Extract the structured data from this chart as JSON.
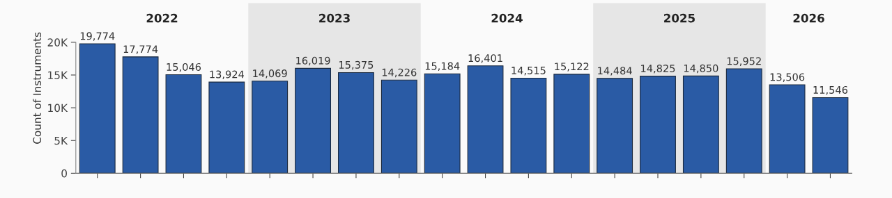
{
  "chart_data": {
    "type": "bar",
    "ylabel": "Count of Instruments",
    "categories": [
      null,
      null,
      null,
      null,
      null,
      null,
      null,
      null,
      null,
      null,
      null,
      null,
      null,
      null,
      null,
      null,
      null,
      null
    ],
    "values": [
      19774,
      17774,
      15046,
      13924,
      14069,
      16019,
      15375,
      14226,
      15184,
      16401,
      14515,
      15122,
      14484,
      14825,
      14850,
      15952,
      13506,
      11546
    ],
    "value_labels": [
      "19,774",
      "17,774",
      "15,046",
      "13,924",
      "14,069",
      "16,019",
      "15,375",
      "14,226",
      "15,184",
      "16,401",
      "14,515",
      "15,122",
      "14,484",
      "14,825",
      "14,850",
      "15,952",
      "13,506",
      "11,546"
    ],
    "color": "#2a5ba5",
    "ylim": [
      0,
      26000
    ],
    "yticks": [
      {
        "value": 0,
        "label": "0"
      },
      {
        "value": 5000,
        "label": "5K"
      },
      {
        "value": 10000,
        "label": "10K"
      },
      {
        "value": 15000,
        "label": "15K"
      },
      {
        "value": 20000,
        "label": "20K"
      }
    ],
    "annotations": [
      "2022",
      "2023",
      "2024",
      "2025",
      "2026"
    ],
    "grid": false
  }
}
